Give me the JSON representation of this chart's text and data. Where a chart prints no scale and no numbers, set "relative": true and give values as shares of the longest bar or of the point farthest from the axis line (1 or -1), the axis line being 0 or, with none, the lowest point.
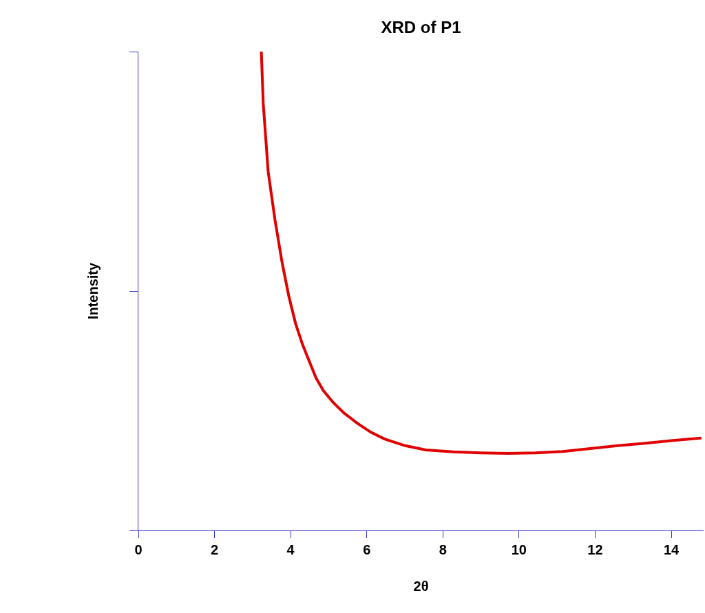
{
  "chart_data": {
    "type": "line",
    "title": "XRD of P1",
    "xlabel": "2θ",
    "ylabel": "Intensity",
    "relative": true,
    "tick_labels": "x",
    "legend": false,
    "marker": "none",
    "line_style": "solid",
    "xlim": [
      0,
      14.85
    ],
    "xticks": [
      0,
      2,
      4,
      6,
      8,
      10,
      12,
      14
    ],
    "series": [
      {
        "color": "#e00000",
        "x": [
          3.23,
          3.28,
          3.41,
          3.59,
          3.77,
          3.95,
          4.13,
          4.31,
          4.49,
          4.67,
          4.86,
          5.12,
          5.39,
          5.75,
          6.11,
          6.47,
          7.01,
          7.55,
          8.27,
          8.99,
          9.71,
          10.43,
          11.15,
          11.87,
          12.59,
          13.32,
          14.04,
          14.79
        ],
        "values": [
          1.0,
          0.892,
          0.749,
          0.648,
          0.562,
          0.49,
          0.432,
          0.389,
          0.353,
          0.318,
          0.292,
          0.267,
          0.246,
          0.224,
          0.205,
          0.191,
          0.177,
          0.168,
          0.164,
          0.162,
          0.161,
          0.162,
          0.165,
          0.171,
          0.177,
          0.182,
          0.188,
          0.193
        ]
      }
    ]
  }
}
